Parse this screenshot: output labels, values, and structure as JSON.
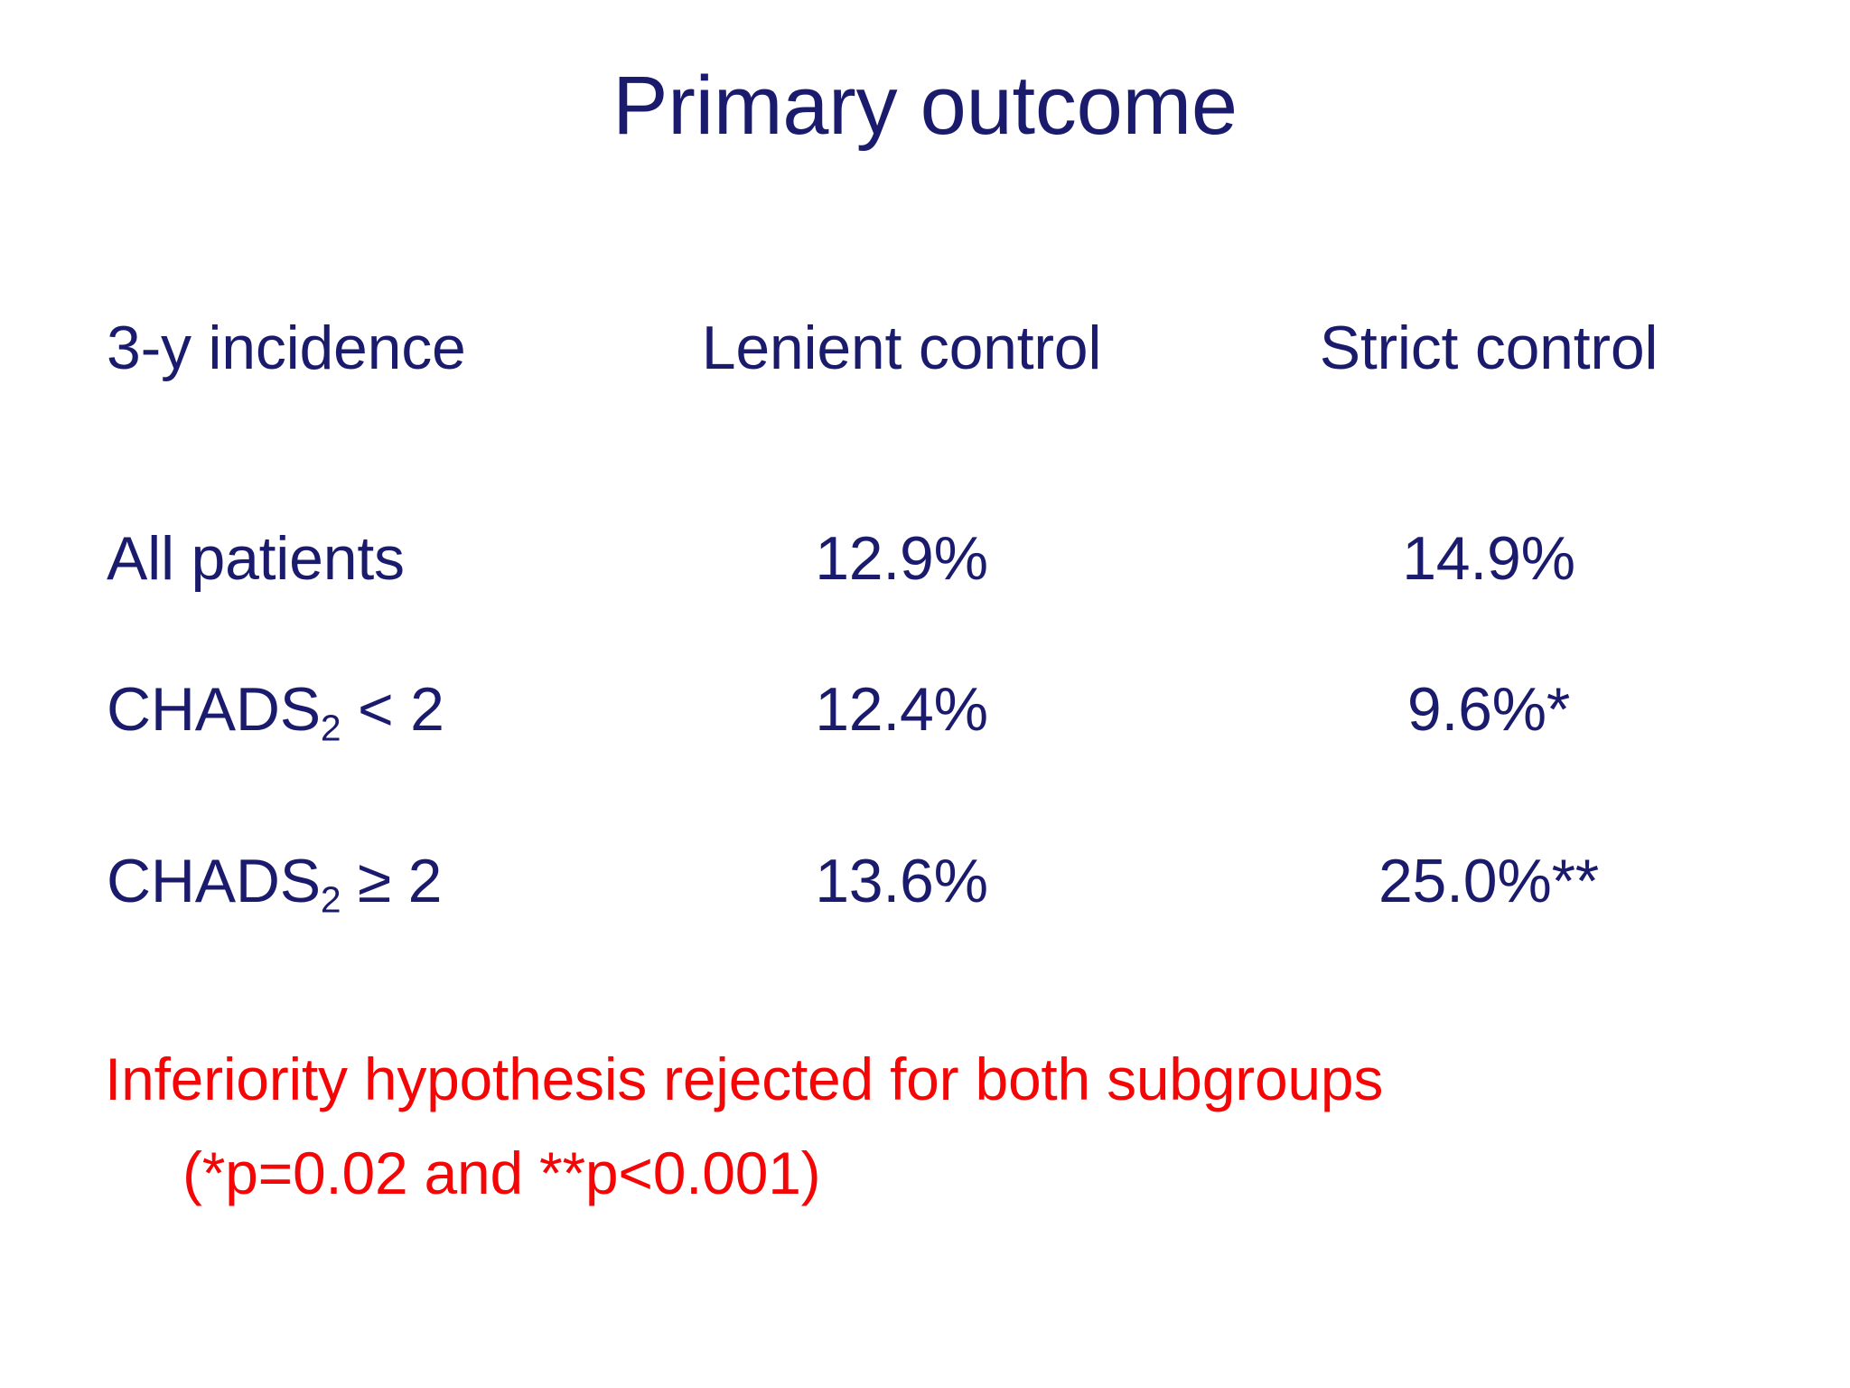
{
  "slide": {
    "title": "Primary outcome",
    "colors": {
      "background": "#ffffff",
      "text_navy": "#1b1b6e",
      "footnote_red": "#f40606"
    },
    "table": {
      "headers": {
        "col1": "3-y incidence",
        "col2": "Lenient control",
        "col3": "Strict control"
      },
      "rows": [
        {
          "label_base": "All patients",
          "label_sub": "",
          "label_suffix": "",
          "lenient": "12.9%",
          "strict": "14.9%"
        },
        {
          "label_base": "CHADS",
          "label_sub": "2",
          "label_suffix": " < 2",
          "lenient": "12.4%",
          "strict": "9.6%*"
        },
        {
          "label_base": "CHADS",
          "label_sub": "2",
          "label_suffix": " ≥ 2",
          "lenient": "13.6%",
          "strict": "25.0%**"
        }
      ]
    },
    "footnote": {
      "line1": "Inferiority hypothesis rejected for both subgroups",
      "line2": "(*p=0.02 and **p<0.001)"
    }
  }
}
